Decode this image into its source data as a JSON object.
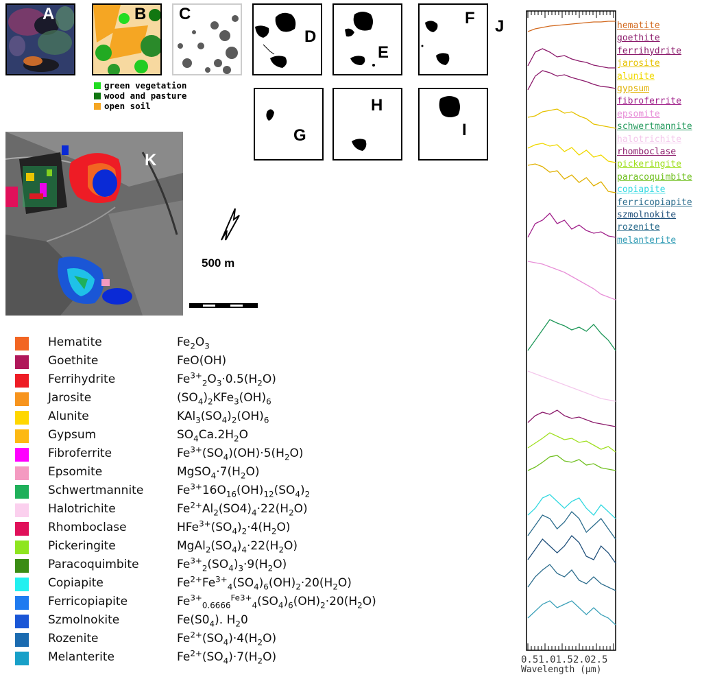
{
  "panels": {
    "a": "A",
    "b": "B",
    "c": "C",
    "d": "D",
    "e": "E",
    "f": "F",
    "g": "G",
    "h": "H",
    "i": "I",
    "j": "J",
    "k": "K"
  },
  "landcover_legend": [
    {
      "label": "green vegetation",
      "color": "#22dd22"
    },
    {
      "label": "wood and pasture",
      "color": "#117711"
    },
    {
      "label": "open soil",
      "color": "#f5a623"
    }
  ],
  "scale_bar": {
    "label": "500 m"
  },
  "minerals": [
    {
      "name": "Hematite",
      "color": "#f26522",
      "formula": "Fe<sub>2</sub>O<sub>3</sub>"
    },
    {
      "name": "Goethite",
      "color": "#b0175a",
      "formula": "FeO(OH)"
    },
    {
      "name": "Ferrihydrite",
      "color": "#ee1c25",
      "formula": "Fe<sup>3+</sup><sub>2</sub>O<sub>3</sub>·0.5(H<sub>2</sub>O)"
    },
    {
      "name": "Jarosite",
      "color": "#f7941d",
      "formula": "(SO<sub>4</sub>)<sub>2</sub>KFe<sub>3</sub>(OH)<sub>6</sub>"
    },
    {
      "name": "Alunite",
      "color": "#ffd700",
      "formula": "KAl<sub>3</sub>(SO<sub>4</sub>)<sub>2</sub>(OH)<sub>6</sub>"
    },
    {
      "name": "Gypsum",
      "color": "#fdb913",
      "formula": "SO<sub>4</sub>Ca.2H<sub>2</sub>O"
    },
    {
      "name": "Fibroferrite",
      "color": "#ff00ff",
      "formula": "Fe<sup>3+</sup>(SO<sub>4</sub>)(OH)·5(H<sub>2</sub>O)"
    },
    {
      "name": "Epsomite",
      "color": "#f49ac1",
      "formula": "MgSO<sub>4</sub>·7(H<sub>2</sub>O)"
    },
    {
      "name": "Schwertmannite",
      "color": "#1fb05a",
      "formula": "Fe<sup>3+</sup>16O<sub>16</sub>(OH)<sub>12</sub>(SO<sub>4</sub>)<sub>2</sub>"
    },
    {
      "name": "Halotrichite",
      "color": "#fbd0ee",
      "formula": "Fe<sup>2+</sup>Al<sub>2</sub>(SO4)<sub>4</sub>·22(H<sub>2</sub>O)"
    },
    {
      "name": "Rhomboclase",
      "color": "#e0105a",
      "formula": "HFe<sup>3+</sup>(SO<sub>4</sub>)<sub>2</sub>·4(H<sub>2</sub>O)"
    },
    {
      "name": "Pickeringite",
      "color": "#8ee51f",
      "formula": "MgAl<sub>2</sub>(SO<sub>4</sub>)<sub>4</sub>·22(H<sub>2</sub>O)"
    },
    {
      "name": "Paracoquimbite",
      "color": "#3a8c14",
      "formula": "Fe<sup>3+</sup><sub>2</sub>(SO<sub>4</sub>)<sub>3</sub>·9(H<sub>2</sub>O)"
    },
    {
      "name": "Copiapite",
      "color": "#22f0f0",
      "formula": "Fe<sup>2+</sup>Fe<sup>3+</sup><sub>4</sub>(SO<sub>4</sub>)<sub>6</sub>(OH)<sub>2</sub>·20(H<sub>2</sub>O)"
    },
    {
      "name": "Ferricopiapite",
      "color": "#1f7bf0",
      "formula": "Fe<sup>3+</sup><sub>0.6666</sub><sup>Fe3+</sup><sub>4</sub>(SO<sub>4</sub>)<sub>6</sub>(OH)<sub>2</sub>·20(H<sub>2</sub>O)"
    },
    {
      "name": "Szmolnokite",
      "color": "#1a56d6",
      "formula": "Fe(S0<sub>4</sub>). H<sub>2</sub>0"
    },
    {
      "name": "Rozenite",
      "color": "#1b6bb0",
      "formula": "Fe<sup>2+</sup>(SO<sub>4</sub>)·4(H<sub>2</sub>O)"
    },
    {
      "name": "Melanterite",
      "color": "#18a0c8",
      "formula": "Fe<sup>2+</sup>(SO<sub>4</sub>)·7(H<sub>2</sub>O)"
    }
  ],
  "spectra_labels": [
    {
      "label": "hematite",
      "color": "#d2691e"
    },
    {
      "label": "goethite",
      "color": "#8b1a6b"
    },
    {
      "label": "ferrihydrite",
      "color": "#8b1a6b"
    },
    {
      "label": "jarosite",
      "color": "#e6c200"
    },
    {
      "label": "alunite",
      "color": "#f0d800"
    },
    {
      "label": "gypsum",
      "color": "#e0b000"
    },
    {
      "label": "fibroferrite",
      "color": "#a0208a"
    },
    {
      "label": "epsomite",
      "color": "#e890d8"
    },
    {
      "label": "schwertmannite",
      "color": "#20985a"
    },
    {
      "label": "halotrichite",
      "color": "#f4c8ec"
    },
    {
      "label": "rhomboclase",
      "color": "#8b1a6b"
    },
    {
      "label": "pickeringite",
      "color": "#a0e020"
    },
    {
      "label": "paracoquimbite",
      "color": "#70c020"
    },
    {
      "label": "copiapite",
      "color": "#30d8e0"
    },
    {
      "label": "ferricopiapite",
      "color": "#2b6c8c"
    },
    {
      "label": "szmolnokite",
      "color": "#1f4f7a"
    },
    {
      "label": "rozenite",
      "color": "#2b6c8c"
    },
    {
      "label": "melanterite",
      "color": "#3aa0b8"
    }
  ],
  "spectra_axis": {
    "ticks": [
      "0.5",
      "1.0",
      "1.5",
      "2.0",
      "2.5"
    ],
    "tick_text": "0.51.01.52.02.5",
    "xlabel": "Wavelength (μm)"
  }
}
